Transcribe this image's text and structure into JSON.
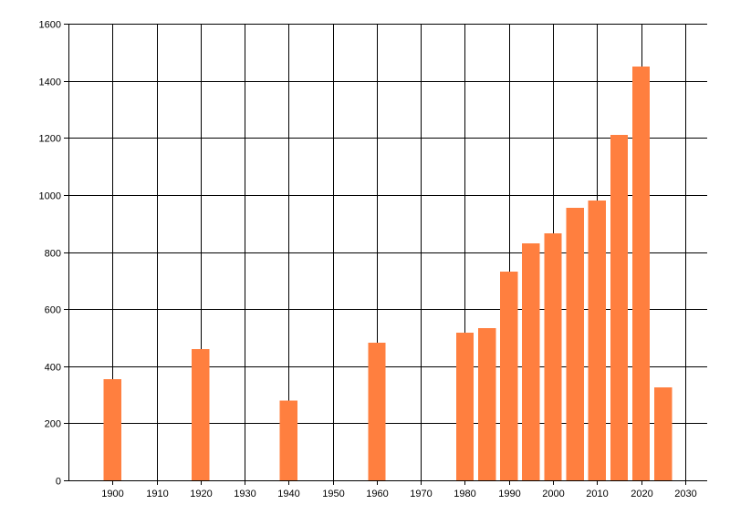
{
  "chart_data": {
    "type": "bar",
    "title": "",
    "xlabel": "",
    "ylabel": "",
    "x": [
      1900,
      1920,
      1940,
      1960,
      1980,
      1985,
      1990,
      1995,
      2000,
      2005,
      2010,
      2015,
      2020,
      2025
    ],
    "values": [
      355,
      460,
      280,
      482,
      517,
      533,
      732,
      830,
      865,
      955,
      980,
      1210,
      1450,
      325
    ],
    "xlim": [
      1890,
      2035
    ],
    "ylim": [
      0,
      1600
    ],
    "xticks": [
      1900,
      1910,
      1920,
      1930,
      1940,
      1950,
      1960,
      1970,
      1980,
      1990,
      2000,
      2010,
      2020,
      2030
    ],
    "yticks": [
      0,
      200,
      400,
      600,
      800,
      1000,
      1200,
      1400,
      1600
    ],
    "bar_width_years": 4,
    "grid": true,
    "legend": "none",
    "bar_color": "#FF7F3F",
    "grid_color": "#000000"
  }
}
